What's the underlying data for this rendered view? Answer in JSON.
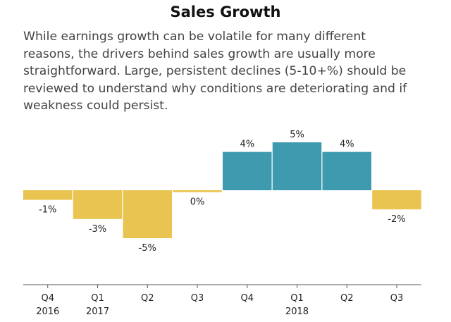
{
  "title": "Sales Growth",
  "description_lines": [
    "While earnings growth can be volatile for many different",
    "reasons, the drivers behind sales growth are usually more",
    "straightforward. Large, persistent declines (5-10+%) should be",
    "reviewed to understand why conditions are deteriorating and if",
    "weakness could persist."
  ],
  "colors": {
    "positive": "#3e9aae",
    "negative": "#eac450",
    "axis": "#555555"
  },
  "chart_data": {
    "type": "bar",
    "categories": [
      "Q4",
      "Q1",
      "Q2",
      "Q3",
      "Q4",
      "Q1",
      "Q2",
      "Q3"
    ],
    "year_labels": [
      "2016",
      "2017",
      "",
      "",
      "",
      "2018",
      "",
      ""
    ],
    "values": [
      -1,
      -3,
      -5,
      -0.2,
      4,
      5,
      4,
      -2
    ],
    "data_labels": [
      "-1%",
      "-3%",
      "-5%",
      "0%",
      "4%",
      "5%",
      "4%",
      "-2%"
    ],
    "title": "Sales Growth",
    "xlabel": "",
    "ylabel": "",
    "grid": false,
    "legend": "none"
  }
}
